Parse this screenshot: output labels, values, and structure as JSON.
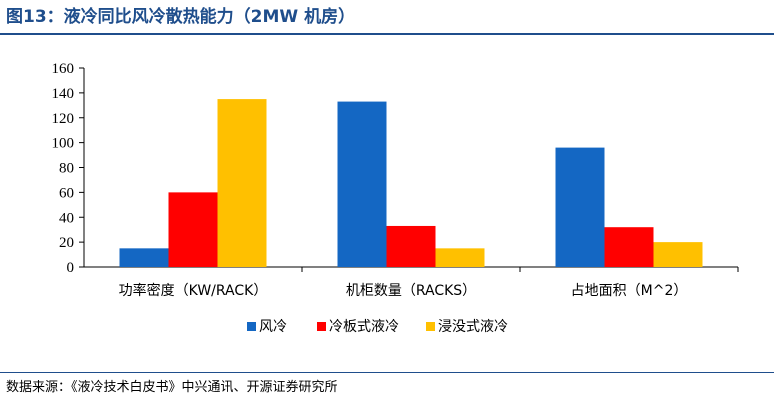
{
  "header": {
    "title": "图13：液冷同比风冷散热能力（2MW 机房）"
  },
  "source": "数据来源：《液冷技术白皮书》中兴通讯、开源证券研究所",
  "colors": {
    "title": "#1f4e8c",
    "series": [
      "#1467c3",
      "#ff0000",
      "#ffc000"
    ]
  },
  "chart_data": {
    "type": "bar",
    "categories": [
      "功率密度（KW/RACK）",
      "机柜数量（RACKS）",
      "占地面积（M^2）"
    ],
    "series": [
      {
        "name": "风冷",
        "values": [
          15,
          133,
          96
        ]
      },
      {
        "name": "冷板式液冷",
        "values": [
          60,
          33,
          32
        ]
      },
      {
        "name": "浸没式液冷",
        "values": [
          135,
          15,
          20
        ]
      }
    ],
    "ylim": [
      0,
      160
    ],
    "yticks": [
      0,
      20,
      40,
      60,
      80,
      100,
      120,
      140,
      160
    ],
    "grid": false,
    "legend_position": "bottom"
  }
}
